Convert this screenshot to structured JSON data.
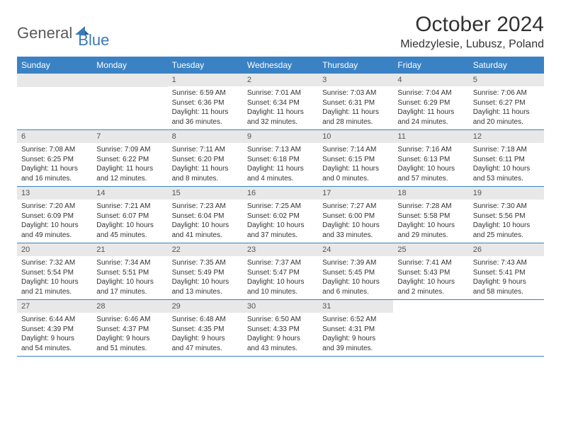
{
  "logo": {
    "general": "General",
    "blue": "Blue"
  },
  "title": "October 2024",
  "location": "Miedzylesie, Lubusz, Poland",
  "colors": {
    "header_bg": "#3a82c4",
    "header_text": "#ffffff",
    "daynum_bg": "#e8e8e8",
    "daynum_text": "#555555",
    "body_text": "#333333",
    "logo_gray": "#5a5a5a",
    "logo_blue": "#3a7ab8",
    "border": "#3a82c4"
  },
  "dayNames": [
    "Sunday",
    "Monday",
    "Tuesday",
    "Wednesday",
    "Thursday",
    "Friday",
    "Saturday"
  ],
  "weeks": [
    [
      null,
      null,
      {
        "n": "1",
        "sr": "Sunrise: 6:59 AM",
        "ss": "Sunset: 6:36 PM",
        "d1": "Daylight: 11 hours",
        "d2": "and 36 minutes."
      },
      {
        "n": "2",
        "sr": "Sunrise: 7:01 AM",
        "ss": "Sunset: 6:34 PM",
        "d1": "Daylight: 11 hours",
        "d2": "and 32 minutes."
      },
      {
        "n": "3",
        "sr": "Sunrise: 7:03 AM",
        "ss": "Sunset: 6:31 PM",
        "d1": "Daylight: 11 hours",
        "d2": "and 28 minutes."
      },
      {
        "n": "4",
        "sr": "Sunrise: 7:04 AM",
        "ss": "Sunset: 6:29 PM",
        "d1": "Daylight: 11 hours",
        "d2": "and 24 minutes."
      },
      {
        "n": "5",
        "sr": "Sunrise: 7:06 AM",
        "ss": "Sunset: 6:27 PM",
        "d1": "Daylight: 11 hours",
        "d2": "and 20 minutes."
      }
    ],
    [
      {
        "n": "6",
        "sr": "Sunrise: 7:08 AM",
        "ss": "Sunset: 6:25 PM",
        "d1": "Daylight: 11 hours",
        "d2": "and 16 minutes."
      },
      {
        "n": "7",
        "sr": "Sunrise: 7:09 AM",
        "ss": "Sunset: 6:22 PM",
        "d1": "Daylight: 11 hours",
        "d2": "and 12 minutes."
      },
      {
        "n": "8",
        "sr": "Sunrise: 7:11 AM",
        "ss": "Sunset: 6:20 PM",
        "d1": "Daylight: 11 hours",
        "d2": "and 8 minutes."
      },
      {
        "n": "9",
        "sr": "Sunrise: 7:13 AM",
        "ss": "Sunset: 6:18 PM",
        "d1": "Daylight: 11 hours",
        "d2": "and 4 minutes."
      },
      {
        "n": "10",
        "sr": "Sunrise: 7:14 AM",
        "ss": "Sunset: 6:15 PM",
        "d1": "Daylight: 11 hours",
        "d2": "and 0 minutes."
      },
      {
        "n": "11",
        "sr": "Sunrise: 7:16 AM",
        "ss": "Sunset: 6:13 PM",
        "d1": "Daylight: 10 hours",
        "d2": "and 57 minutes."
      },
      {
        "n": "12",
        "sr": "Sunrise: 7:18 AM",
        "ss": "Sunset: 6:11 PM",
        "d1": "Daylight: 10 hours",
        "d2": "and 53 minutes."
      }
    ],
    [
      {
        "n": "13",
        "sr": "Sunrise: 7:20 AM",
        "ss": "Sunset: 6:09 PM",
        "d1": "Daylight: 10 hours",
        "d2": "and 49 minutes."
      },
      {
        "n": "14",
        "sr": "Sunrise: 7:21 AM",
        "ss": "Sunset: 6:07 PM",
        "d1": "Daylight: 10 hours",
        "d2": "and 45 minutes."
      },
      {
        "n": "15",
        "sr": "Sunrise: 7:23 AM",
        "ss": "Sunset: 6:04 PM",
        "d1": "Daylight: 10 hours",
        "d2": "and 41 minutes."
      },
      {
        "n": "16",
        "sr": "Sunrise: 7:25 AM",
        "ss": "Sunset: 6:02 PM",
        "d1": "Daylight: 10 hours",
        "d2": "and 37 minutes."
      },
      {
        "n": "17",
        "sr": "Sunrise: 7:27 AM",
        "ss": "Sunset: 6:00 PM",
        "d1": "Daylight: 10 hours",
        "d2": "and 33 minutes."
      },
      {
        "n": "18",
        "sr": "Sunrise: 7:28 AM",
        "ss": "Sunset: 5:58 PM",
        "d1": "Daylight: 10 hours",
        "d2": "and 29 minutes."
      },
      {
        "n": "19",
        "sr": "Sunrise: 7:30 AM",
        "ss": "Sunset: 5:56 PM",
        "d1": "Daylight: 10 hours",
        "d2": "and 25 minutes."
      }
    ],
    [
      {
        "n": "20",
        "sr": "Sunrise: 7:32 AM",
        "ss": "Sunset: 5:54 PM",
        "d1": "Daylight: 10 hours",
        "d2": "and 21 minutes."
      },
      {
        "n": "21",
        "sr": "Sunrise: 7:34 AM",
        "ss": "Sunset: 5:51 PM",
        "d1": "Daylight: 10 hours",
        "d2": "and 17 minutes."
      },
      {
        "n": "22",
        "sr": "Sunrise: 7:35 AM",
        "ss": "Sunset: 5:49 PM",
        "d1": "Daylight: 10 hours",
        "d2": "and 13 minutes."
      },
      {
        "n": "23",
        "sr": "Sunrise: 7:37 AM",
        "ss": "Sunset: 5:47 PM",
        "d1": "Daylight: 10 hours",
        "d2": "and 10 minutes."
      },
      {
        "n": "24",
        "sr": "Sunrise: 7:39 AM",
        "ss": "Sunset: 5:45 PM",
        "d1": "Daylight: 10 hours",
        "d2": "and 6 minutes."
      },
      {
        "n": "25",
        "sr": "Sunrise: 7:41 AM",
        "ss": "Sunset: 5:43 PM",
        "d1": "Daylight: 10 hours",
        "d2": "and 2 minutes."
      },
      {
        "n": "26",
        "sr": "Sunrise: 7:43 AM",
        "ss": "Sunset: 5:41 PM",
        "d1": "Daylight: 9 hours",
        "d2": "and 58 minutes."
      }
    ],
    [
      {
        "n": "27",
        "sr": "Sunrise: 6:44 AM",
        "ss": "Sunset: 4:39 PM",
        "d1": "Daylight: 9 hours",
        "d2": "and 54 minutes."
      },
      {
        "n": "28",
        "sr": "Sunrise: 6:46 AM",
        "ss": "Sunset: 4:37 PM",
        "d1": "Daylight: 9 hours",
        "d2": "and 51 minutes."
      },
      {
        "n": "29",
        "sr": "Sunrise: 6:48 AM",
        "ss": "Sunset: 4:35 PM",
        "d1": "Daylight: 9 hours",
        "d2": "and 47 minutes."
      },
      {
        "n": "30",
        "sr": "Sunrise: 6:50 AM",
        "ss": "Sunset: 4:33 PM",
        "d1": "Daylight: 9 hours",
        "d2": "and 43 minutes."
      },
      {
        "n": "31",
        "sr": "Sunrise: 6:52 AM",
        "ss": "Sunset: 4:31 PM",
        "d1": "Daylight: 9 hours",
        "d2": "and 39 minutes."
      },
      null,
      null
    ]
  ]
}
